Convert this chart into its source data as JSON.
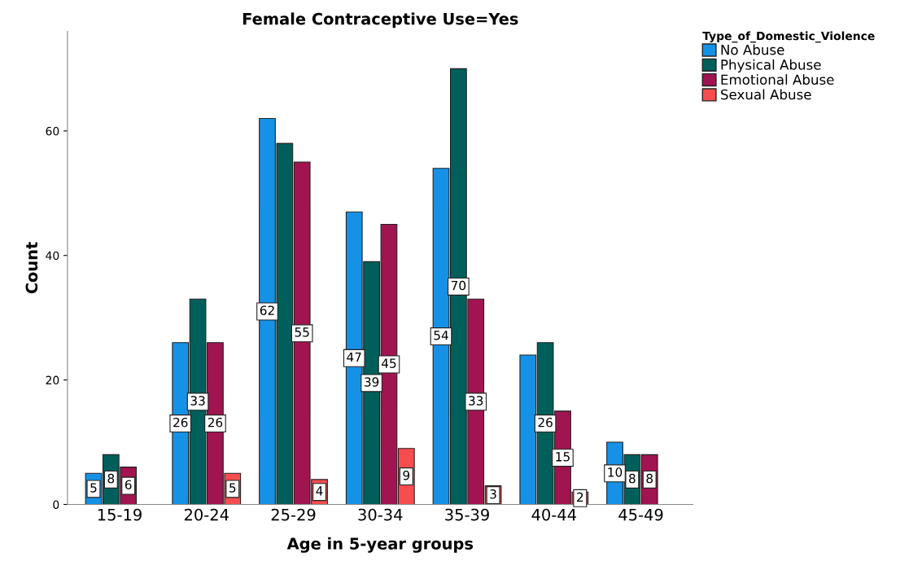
{
  "chart_data": {
    "type": "bar",
    "title": "Female Contraceptive Use=Yes",
    "xlabel": "Age in 5-year groups",
    "ylabel": "Count",
    "legend_title": "Type_of_Domestic_Violence",
    "categories": [
      "15-19",
      "20-24",
      "25-29",
      "30-34",
      "35-39",
      "40-44",
      "45-49"
    ],
    "series": [
      {
        "name": "No Abuse",
        "color": "#1592e6",
        "values": [
          5,
          26,
          62,
          47,
          54,
          24,
          10
        ],
        "value_labels": [
          "5",
          "26",
          "62",
          "47",
          "54",
          null,
          "10"
        ]
      },
      {
        "name": "Physical Abuse",
        "color": "#005f5a",
        "values": [
          8,
          33,
          58,
          39,
          70,
          26,
          8
        ],
        "value_labels": [
          "8",
          "33",
          null,
          "39",
          "70",
          "26",
          "8"
        ]
      },
      {
        "name": "Emotional Abuse",
        "color": "#a0144f",
        "values": [
          6,
          26,
          55,
          45,
          33,
          15,
          8
        ],
        "value_labels": [
          "6",
          "26",
          "55",
          "45",
          "33",
          "15",
          "8"
        ]
      },
      {
        "name": "Sexual Abuse",
        "color": "#f74d4f",
        "values": [
          null,
          5,
          4,
          9,
          3,
          2,
          null
        ],
        "value_labels": [
          null,
          "5",
          "4",
          "9",
          "3",
          "2",
          null
        ]
      }
    ],
    "ylim": [
      0,
      76
    ],
    "yticks": [
      0,
      20,
      40,
      60
    ],
    "grid": false,
    "legend": "top right"
  }
}
